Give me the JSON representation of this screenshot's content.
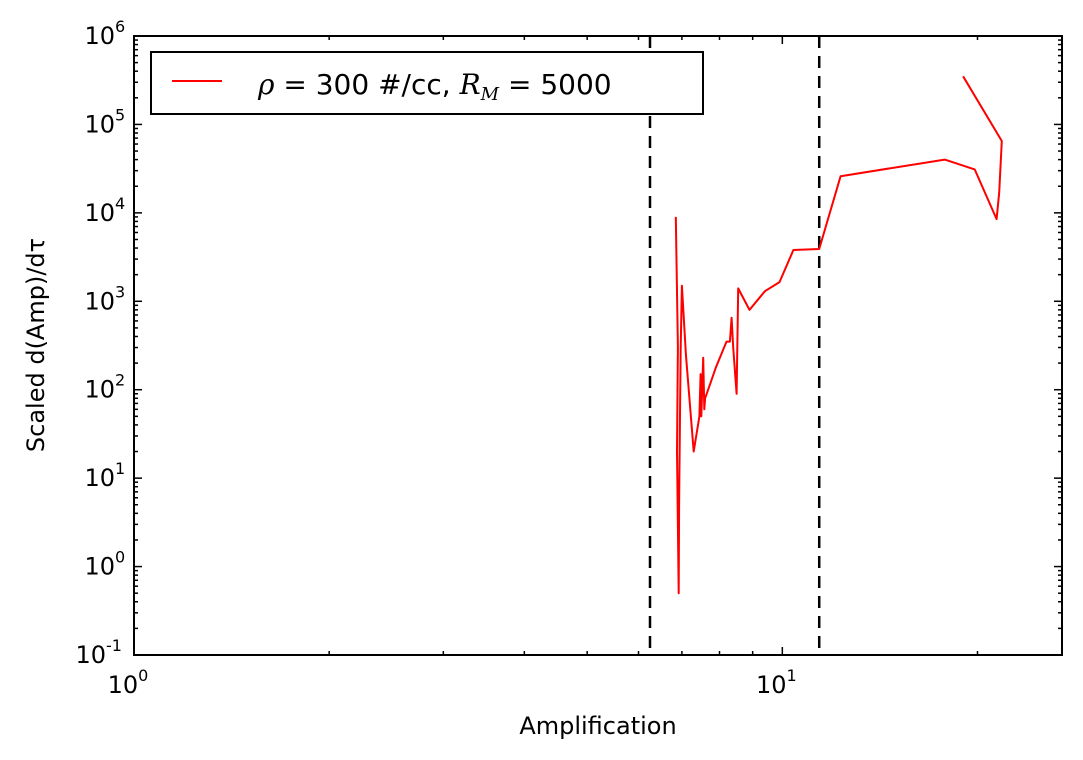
{
  "chart_data": {
    "type": "line",
    "xscale": "log",
    "yscale": "log",
    "xlabel": "Amplification",
    "ylabel": "Scaled d(Amp)/dτ",
    "xlim": [
      1,
      27
    ],
    "ylim": [
      0.1,
      1000000
    ],
    "x_ticks": [
      {
        "value": 1,
        "base": "10",
        "exp": "0"
      },
      {
        "value": 10,
        "base": "10",
        "exp": "1"
      }
    ],
    "y_ticks": [
      {
        "value": 0.1,
        "base": "10",
        "exp": "-1"
      },
      {
        "value": 1,
        "base": "10",
        "exp": "0"
      },
      {
        "value": 10,
        "base": "10",
        "exp": "1"
      },
      {
        "value": 100,
        "base": "10",
        "exp": "2"
      },
      {
        "value": 1000,
        "base": "10",
        "exp": "3"
      },
      {
        "value": 10000,
        "base": "10",
        "exp": "4"
      },
      {
        "value": 100000,
        "base": "10",
        "exp": "5"
      },
      {
        "value": 1000000,
        "base": "10",
        "exp": "6"
      }
    ],
    "vlines": [
      6.25,
      11.4
    ],
    "legend": {
      "placement": "top-left",
      "rho": "ρ",
      "eq1": " = ",
      "density_text": " 300 #/cc, ",
      "rm_base": "R",
      "rm_sub": "M",
      "eq2": " = 5000"
    },
    "series": [
      {
        "color": "#ff0000",
        "points": [
          [
            6.85,
            9000
          ],
          [
            6.9,
            300
          ],
          [
            6.88,
            20
          ],
          [
            6.92,
            0.5
          ],
          [
            6.93,
            5
          ],
          [
            6.95,
            40
          ],
          [
            6.97,
            300
          ],
          [
            7.0,
            1500
          ],
          [
            7.1,
            250
          ],
          [
            7.3,
            20
          ],
          [
            7.45,
            50
          ],
          [
            7.48,
            150
          ],
          [
            7.5,
            50
          ],
          [
            7.55,
            230
          ],
          [
            7.58,
            60
          ],
          [
            7.6,
            80
          ],
          [
            7.75,
            120
          ],
          [
            7.9,
            180
          ],
          [
            8.2,
            350
          ],
          [
            8.3,
            350
          ],
          [
            8.35,
            650
          ],
          [
            8.4,
            300
          ],
          [
            8.5,
            90
          ],
          [
            8.55,
            1400
          ],
          [
            8.9,
            800
          ],
          [
            9.4,
            1300
          ],
          [
            9.9,
            1650
          ],
          [
            10.4,
            3800
          ],
          [
            11.4,
            3900
          ],
          [
            12.3,
            26000
          ],
          [
            17.8,
            40000
          ],
          [
            19.8,
            31000
          ],
          [
            21.4,
            8500
          ],
          [
            21.6,
            17000
          ],
          [
            21.8,
            65000
          ],
          [
            19.0,
            350000
          ]
        ]
      }
    ]
  }
}
